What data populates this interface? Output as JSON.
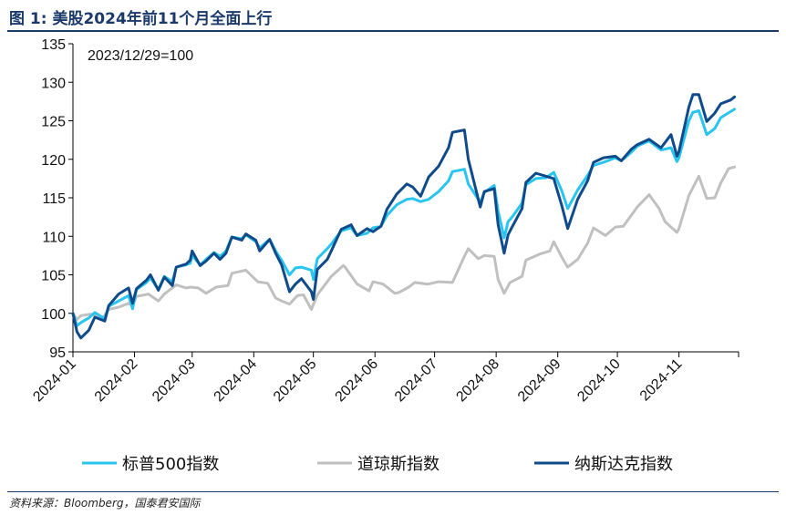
{
  "figure": {
    "title": "图 1:  美股2024年前11个月全面上行",
    "source": "资料来源：Bloomberg，国泰君安国际"
  },
  "chart_data": {
    "type": "line",
    "note": "2023/12/29=100",
    "ylim": [
      95,
      135
    ],
    "yticks": [
      95,
      100,
      105,
      110,
      115,
      120,
      125,
      130,
      135
    ],
    "xlim": [
      "2024-01-01",
      "2024-12-01"
    ],
    "xticks": [
      "2024-01",
      "2024-02",
      "2024-03",
      "2024-04",
      "2024-05",
      "2024-06",
      "2024-07",
      "2024-08",
      "2024-09",
      "2024-10",
      "2024-11"
    ],
    "grid": false,
    "legend_position": "bottom",
    "series": [
      {
        "name": "标普500指数",
        "color": "#29c5f0",
        "points": [
          [
            "2024-01-01",
            100.0
          ],
          [
            "2024-01-03",
            98.4
          ],
          [
            "2024-01-05",
            98.8
          ],
          [
            "2024-01-09",
            99.4
          ],
          [
            "2024-01-12",
            100.1
          ],
          [
            "2024-01-17",
            99.3
          ],
          [
            "2024-01-19",
            100.9
          ],
          [
            "2024-01-24",
            101.6
          ],
          [
            "2024-01-29",
            102.3
          ],
          [
            "2024-01-31",
            100.6
          ],
          [
            "2024-02-02",
            103.1
          ],
          [
            "2024-02-07",
            104.0
          ],
          [
            "2024-02-09",
            104.6
          ],
          [
            "2024-02-13",
            103.1
          ],
          [
            "2024-02-16",
            104.8
          ],
          [
            "2024-02-20",
            104.1
          ],
          [
            "2024-02-22",
            106.0
          ],
          [
            "2024-02-27",
            106.3
          ],
          [
            "2024-02-29",
            106.5
          ],
          [
            "2024-03-01",
            107.5
          ],
          [
            "2024-03-05",
            106.3
          ],
          [
            "2024-03-08",
            107.0
          ],
          [
            "2024-03-12",
            107.9
          ],
          [
            "2024-03-15",
            107.4
          ],
          [
            "2024-03-18",
            108.1
          ],
          [
            "2024-03-21",
            109.9
          ],
          [
            "2024-03-26",
            109.7
          ],
          [
            "2024-03-28",
            110.2
          ],
          [
            "2024-04-02",
            109.3
          ],
          [
            "2024-04-04",
            108.5
          ],
          [
            "2024-04-09",
            109.6
          ],
          [
            "2024-04-12",
            108.1
          ],
          [
            "2024-04-15",
            106.9
          ],
          [
            "2024-04-19",
            105.0
          ],
          [
            "2024-04-22",
            105.9
          ],
          [
            "2024-04-25",
            106.0
          ],
          [
            "2024-04-30",
            105.6
          ],
          [
            "2024-05-01",
            104.4
          ],
          [
            "2024-05-03",
            107.1
          ],
          [
            "2024-05-08",
            108.4
          ],
          [
            "2024-05-10",
            109.0
          ],
          [
            "2024-05-15",
            110.7
          ],
          [
            "2024-05-20",
            111.1
          ],
          [
            "2024-05-23",
            110.1
          ],
          [
            "2024-05-28",
            110.4
          ],
          [
            "2024-05-31",
            111.1
          ],
          [
            "2024-06-04",
            111.3
          ],
          [
            "2024-06-07",
            112.7
          ],
          [
            "2024-06-12",
            114.1
          ],
          [
            "2024-06-17",
            114.8
          ],
          [
            "2024-06-20",
            114.9
          ],
          [
            "2024-06-24",
            114.5
          ],
          [
            "2024-06-28",
            114.8
          ],
          [
            "2024-07-03",
            115.8
          ],
          [
            "2024-07-08",
            117.2
          ],
          [
            "2024-07-10",
            118.4
          ],
          [
            "2024-07-16",
            118.7
          ],
          [
            "2024-07-18",
            116.8
          ],
          [
            "2024-07-24",
            114.4
          ],
          [
            "2024-07-26",
            115.7
          ],
          [
            "2024-07-31",
            116.6
          ],
          [
            "2024-08-02",
            113.3
          ],
          [
            "2024-08-05",
            109.8
          ],
          [
            "2024-08-07",
            111.9
          ],
          [
            "2024-08-09",
            112.5
          ],
          [
            "2024-08-14",
            114.3
          ],
          [
            "2024-08-16",
            116.7
          ],
          [
            "2024-08-21",
            117.5
          ],
          [
            "2024-08-26",
            117.6
          ],
          [
            "2024-08-30",
            118.3
          ],
          [
            "2024-09-03",
            115.9
          ],
          [
            "2024-09-06",
            113.6
          ],
          [
            "2024-09-11",
            116.0
          ],
          [
            "2024-09-16",
            117.9
          ],
          [
            "2024-09-19",
            119.2
          ],
          [
            "2024-09-24",
            119.6
          ],
          [
            "2024-09-30",
            120.2
          ],
          [
            "2024-10-03",
            119.8
          ],
          [
            "2024-10-08",
            120.9
          ],
          [
            "2024-10-11",
            121.7
          ],
          [
            "2024-10-17",
            122.4
          ],
          [
            "2024-10-23",
            121.2
          ],
          [
            "2024-10-28",
            121.5
          ],
          [
            "2024-10-31",
            119.7
          ],
          [
            "2024-11-01",
            120.2
          ],
          [
            "2024-11-06",
            125.0
          ],
          [
            "2024-11-08",
            126.1
          ],
          [
            "2024-11-11",
            126.3
          ],
          [
            "2024-11-15",
            123.2
          ],
          [
            "2024-11-19",
            124.0
          ],
          [
            "2024-11-22",
            125.4
          ],
          [
            "2024-11-27",
            126.2
          ],
          [
            "2024-11-29",
            126.5
          ]
        ]
      },
      {
        "name": "道琼斯指数",
        "color": "#c0c0c0",
        "points": [
          [
            "2024-01-01",
            100.0
          ],
          [
            "2024-01-03",
            99.2
          ],
          [
            "2024-01-05",
            99.7
          ],
          [
            "2024-01-10",
            99.9
          ],
          [
            "2024-01-16",
            99.4
          ],
          [
            "2024-01-19",
            100.5
          ],
          [
            "2024-01-24",
            100.8
          ],
          [
            "2024-01-29",
            101.3
          ],
          [
            "2024-01-31",
            101.0
          ],
          [
            "2024-02-02",
            102.2
          ],
          [
            "2024-02-08",
            102.5
          ],
          [
            "2024-02-13",
            101.6
          ],
          [
            "2024-02-16",
            102.5
          ],
          [
            "2024-02-22",
            103.7
          ],
          [
            "2024-02-27",
            103.3
          ],
          [
            "2024-02-29",
            103.4
          ],
          [
            "2024-03-04",
            103.3
          ],
          [
            "2024-03-08",
            102.6
          ],
          [
            "2024-03-13",
            103.4
          ],
          [
            "2024-03-19",
            103.6
          ],
          [
            "2024-03-21",
            105.2
          ],
          [
            "2024-03-28",
            105.6
          ],
          [
            "2024-04-03",
            104.1
          ],
          [
            "2024-04-08",
            103.9
          ],
          [
            "2024-04-12",
            102.0
          ],
          [
            "2024-04-15",
            101.6
          ],
          [
            "2024-04-19",
            101.2
          ],
          [
            "2024-04-23",
            102.3
          ],
          [
            "2024-04-26",
            102.4
          ],
          [
            "2024-04-30",
            100.5
          ],
          [
            "2024-05-03",
            102.4
          ],
          [
            "2024-05-10",
            104.8
          ],
          [
            "2024-05-16",
            106.2
          ],
          [
            "2024-05-17",
            106.0
          ],
          [
            "2024-05-23",
            103.8
          ],
          [
            "2024-05-29",
            102.9
          ],
          [
            "2024-05-31",
            104.1
          ],
          [
            "2024-06-05",
            103.8
          ],
          [
            "2024-06-11",
            102.6
          ],
          [
            "2024-06-13",
            102.7
          ],
          [
            "2024-06-18",
            103.4
          ],
          [
            "2024-06-21",
            104.0
          ],
          [
            "2024-06-27",
            103.8
          ],
          [
            "2024-06-28",
            103.8
          ],
          [
            "2024-07-03",
            104.1
          ],
          [
            "2024-07-10",
            104.0
          ],
          [
            "2024-07-16",
            107.4
          ],
          [
            "2024-07-18",
            108.4
          ],
          [
            "2024-07-23",
            107.1
          ],
          [
            "2024-07-26",
            107.5
          ],
          [
            "2024-07-31",
            107.4
          ],
          [
            "2024-08-02",
            104.4
          ],
          [
            "2024-08-05",
            102.6
          ],
          [
            "2024-08-08",
            104.0
          ],
          [
            "2024-08-14",
            104.8
          ],
          [
            "2024-08-16",
            106.9
          ],
          [
            "2024-08-23",
            107.7
          ],
          [
            "2024-08-28",
            108.1
          ],
          [
            "2024-08-30",
            109.3
          ],
          [
            "2024-09-03",
            107.3
          ],
          [
            "2024-09-06",
            106.0
          ],
          [
            "2024-09-11",
            107.0
          ],
          [
            "2024-09-16",
            109.1
          ],
          [
            "2024-09-19",
            111.1
          ],
          [
            "2024-09-25",
            110.1
          ],
          [
            "2024-09-30",
            111.2
          ],
          [
            "2024-10-04",
            111.3
          ],
          [
            "2024-10-11",
            113.8
          ],
          [
            "2024-10-17",
            115.4
          ],
          [
            "2024-10-22",
            113.6
          ],
          [
            "2024-10-25",
            111.9
          ],
          [
            "2024-10-31",
            110.5
          ],
          [
            "2024-11-01",
            111.0
          ],
          [
            "2024-11-06",
            115.3
          ],
          [
            "2024-11-11",
            117.8
          ],
          [
            "2024-11-15",
            114.9
          ],
          [
            "2024-11-19",
            115.0
          ],
          [
            "2024-11-22",
            116.9
          ],
          [
            "2024-11-26",
            118.8
          ],
          [
            "2024-11-29",
            119.0
          ]
        ]
      },
      {
        "name": "纳斯达克指数",
        "color": "#0f4a8a",
        "points": [
          [
            "2024-01-01",
            100.0
          ],
          [
            "2024-01-03",
            97.6
          ],
          [
            "2024-01-05",
            96.8
          ],
          [
            "2024-01-09",
            97.8
          ],
          [
            "2024-01-12",
            99.5
          ],
          [
            "2024-01-17",
            99.0
          ],
          [
            "2024-01-19",
            101.0
          ],
          [
            "2024-01-24",
            102.5
          ],
          [
            "2024-01-29",
            103.3
          ],
          [
            "2024-01-31",
            101.3
          ],
          [
            "2024-02-02",
            103.2
          ],
          [
            "2024-02-07",
            104.3
          ],
          [
            "2024-02-09",
            105.0
          ],
          [
            "2024-02-13",
            103.0
          ],
          [
            "2024-02-16",
            104.7
          ],
          [
            "2024-02-20",
            103.6
          ],
          [
            "2024-02-22",
            106.0
          ],
          [
            "2024-02-27",
            106.4
          ],
          [
            "2024-02-29",
            106.9
          ],
          [
            "2024-03-01",
            108.1
          ],
          [
            "2024-03-05",
            106.2
          ],
          [
            "2024-03-08",
            106.8
          ],
          [
            "2024-03-12",
            107.8
          ],
          [
            "2024-03-15",
            107.0
          ],
          [
            "2024-03-18",
            107.8
          ],
          [
            "2024-03-21",
            109.9
          ],
          [
            "2024-03-26",
            109.5
          ],
          [
            "2024-03-28",
            110.3
          ],
          [
            "2024-04-02",
            109.5
          ],
          [
            "2024-04-04",
            108.1
          ],
          [
            "2024-04-09",
            109.6
          ],
          [
            "2024-04-12",
            107.8
          ],
          [
            "2024-04-15",
            106.3
          ],
          [
            "2024-04-19",
            102.8
          ],
          [
            "2024-04-22",
            103.8
          ],
          [
            "2024-04-25",
            104.5
          ],
          [
            "2024-04-30",
            102.8
          ],
          [
            "2024-05-01",
            101.8
          ],
          [
            "2024-05-03",
            105.7
          ],
          [
            "2024-05-08",
            107.0
          ],
          [
            "2024-05-10",
            108.1
          ],
          [
            "2024-05-15",
            110.9
          ],
          [
            "2024-05-20",
            111.5
          ],
          [
            "2024-05-23",
            110.1
          ],
          [
            "2024-05-28",
            111.0
          ],
          [
            "2024-05-31",
            110.6
          ],
          [
            "2024-06-04",
            111.3
          ],
          [
            "2024-06-07",
            113.5
          ],
          [
            "2024-06-12",
            115.5
          ],
          [
            "2024-06-17",
            116.8
          ],
          [
            "2024-06-20",
            116.4
          ],
          [
            "2024-06-24",
            115.2
          ],
          [
            "2024-06-28",
            117.7
          ],
          [
            "2024-07-03",
            119.1
          ],
          [
            "2024-07-08",
            121.5
          ],
          [
            "2024-07-10",
            123.5
          ],
          [
            "2024-07-16",
            123.8
          ],
          [
            "2024-07-18",
            120.0
          ],
          [
            "2024-07-24",
            113.8
          ],
          [
            "2024-07-26",
            115.8
          ],
          [
            "2024-07-31",
            116.2
          ],
          [
            "2024-08-02",
            111.5
          ],
          [
            "2024-08-05",
            107.8
          ],
          [
            "2024-08-07",
            110.2
          ],
          [
            "2024-08-09",
            111.2
          ],
          [
            "2024-08-14",
            113.6
          ],
          [
            "2024-08-16",
            117.0
          ],
          [
            "2024-08-21",
            118.2
          ],
          [
            "2024-08-26",
            117.8
          ],
          [
            "2024-08-30",
            117.5
          ],
          [
            "2024-09-03",
            114.0
          ],
          [
            "2024-09-06",
            111.0
          ],
          [
            "2024-09-11",
            114.8
          ],
          [
            "2024-09-16",
            117.2
          ],
          [
            "2024-09-19",
            119.6
          ],
          [
            "2024-09-24",
            120.2
          ],
          [
            "2024-09-30",
            120.4
          ],
          [
            "2024-10-03",
            119.8
          ],
          [
            "2024-10-08",
            121.3
          ],
          [
            "2024-10-11",
            121.9
          ],
          [
            "2024-10-17",
            122.6
          ],
          [
            "2024-10-23",
            121.5
          ],
          [
            "2024-10-28",
            123.2
          ],
          [
            "2024-10-31",
            120.4
          ],
          [
            "2024-11-01",
            121.0
          ],
          [
            "2024-11-06",
            126.8
          ],
          [
            "2024-11-08",
            128.4
          ],
          [
            "2024-11-11",
            128.4
          ],
          [
            "2024-11-15",
            124.9
          ],
          [
            "2024-11-19",
            126.0
          ],
          [
            "2024-11-22",
            127.2
          ],
          [
            "2024-11-27",
            127.7
          ],
          [
            "2024-11-29",
            128.1
          ]
        ]
      }
    ]
  }
}
